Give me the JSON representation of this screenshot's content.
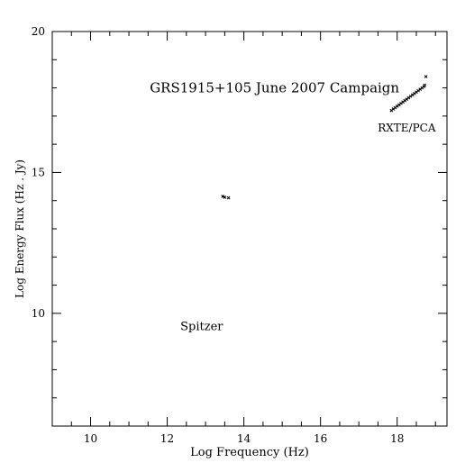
{
  "chart_data": {
    "type": "scatter",
    "title": "",
    "xlabel": "Log Frequency (Hz)",
    "ylabel": "Log Energy Flux (Hz . Jy)",
    "xlim": [
      9.0,
      19.3
    ],
    "ylim": [
      6.0,
      20.0
    ],
    "x_ticks": [
      "10",
      "12",
      "14",
      "16",
      "18"
    ],
    "y_ticks": [
      "10",
      "15",
      "20"
    ],
    "grid": false,
    "legend": "none",
    "annotations": [
      {
        "text": "GRS1915+105 June 2007 Campaign",
        "x": 14.8,
        "y": 17.85
      },
      {
        "text": "RXTE/PCA",
        "x": 18.25,
        "y": 16.45
      },
      {
        "text": "Spitzer",
        "x": 12.9,
        "y": 9.4
      }
    ],
    "series": [
      {
        "group": "Spitzer",
        "x": [
          13.45,
          13.5,
          13.6
        ],
        "y": [
          14.15,
          14.12,
          14.1
        ]
      },
      {
        "group": "RXTE/PCA",
        "x": [
          17.85,
          17.9,
          17.95,
          18.0,
          18.05,
          18.1,
          18.15,
          18.2,
          18.25,
          18.3,
          18.35,
          18.4,
          18.45,
          18.5,
          18.55,
          18.6,
          18.65,
          18.7,
          18.72,
          18.75
        ],
        "y": [
          17.2,
          17.25,
          17.3,
          17.35,
          17.4,
          17.45,
          17.5,
          17.55,
          17.6,
          17.65,
          17.7,
          17.75,
          17.8,
          17.85,
          17.9,
          17.95,
          18.0,
          18.05,
          18.1,
          18.4
        ]
      }
    ]
  },
  "colors": {
    "axis": "#000000",
    "marker": "#000000",
    "background": "#ffffff"
  }
}
